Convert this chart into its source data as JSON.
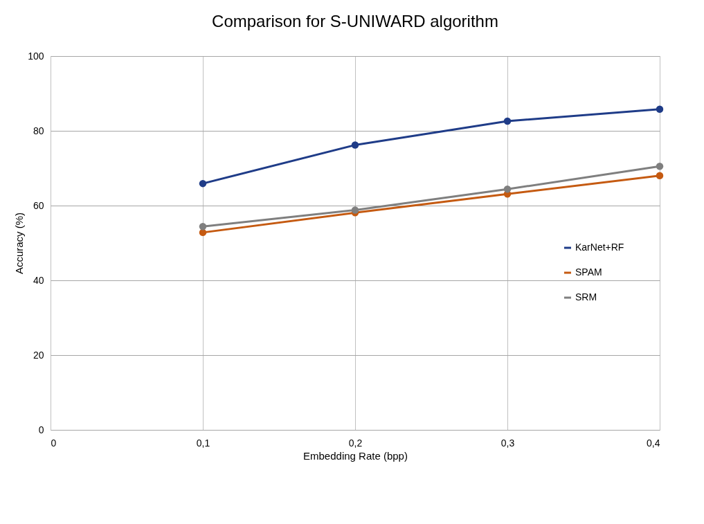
{
  "chart_data": {
    "type": "line",
    "title": "Comparison for S-UNIWARD algorithm",
    "xlabel": "Embedding Rate (bpp)",
    "ylabel": "Accuracy (%)",
    "x": [
      0.1,
      0.2,
      0.3,
      0.4
    ],
    "series": [
      {
        "name": "KarNet+RF",
        "color": "#1f3c88",
        "values": [
          65.9,
          76.2,
          82.6,
          85.8
        ]
      },
      {
        "name": "SPAM",
        "color": "#c55a11",
        "values": [
          52.8,
          58.1,
          63.1,
          68.0
        ]
      },
      {
        "name": "SRM",
        "color": "#7f7f7f",
        "values": [
          54.4,
          58.8,
          64.4,
          70.5
        ]
      }
    ],
    "xlim": [
      0,
      0.4
    ],
    "xticks": [
      0,
      {
        "value": 0.1,
        "label": "0,1"
      },
      {
        "value": 0.2,
        "label": "0,2"
      },
      {
        "value": 0.3,
        "label": "0,3"
      },
      {
        "value": 0.4,
        "label": "0,4"
      }
    ],
    "ylim": [
      0,
      100
    ],
    "yticks": [
      0,
      20,
      40,
      60,
      80,
      100
    ],
    "grid": true,
    "legend": "right",
    "marker": "circle",
    "line_style": "solid"
  }
}
